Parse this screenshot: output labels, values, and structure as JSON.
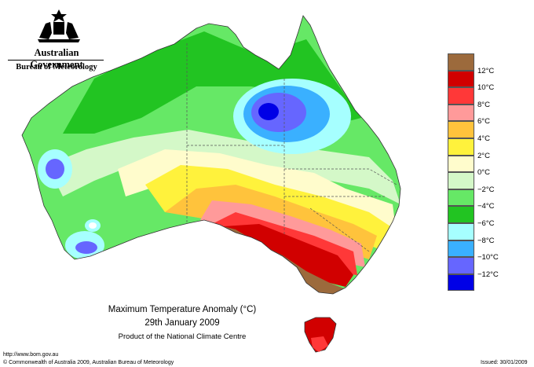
{
  "agency": {
    "government": "Australian Government",
    "bureau": "Bureau of Meteorology"
  },
  "map": {
    "title": "Maximum Temperature Anomaly (°C)",
    "date": "29th January 2009",
    "product": "Product of the National Climate Centre"
  },
  "legend": {
    "items": [
      {
        "label": "",
        "color": "#9c6a3c"
      },
      {
        "label": "12°C",
        "color": "#d10000"
      },
      {
        "label": "10°C",
        "color": "#ff3838"
      },
      {
        "label": "8°C",
        "color": "#ff9a9a"
      },
      {
        "label": "6°C",
        "color": "#ffc33c"
      },
      {
        "label": "4°C",
        "color": "#fff23c"
      },
      {
        "label": "2°C",
        "color": "#fffccc"
      },
      {
        "label": "0°C",
        "color": "#d4f8c8"
      },
      {
        "label": "−2°C",
        "color": "#66e866"
      },
      {
        "label": "−4°C",
        "color": "#22c422"
      },
      {
        "label": "−6°C",
        "color": "#a6ffff"
      },
      {
        "label": "−8°C",
        "color": "#3ab0ff"
      },
      {
        "label": "−10°C",
        "color": "#6666ff"
      },
      {
        "label": "−12°C",
        "color": "#0000e6"
      }
    ]
  },
  "footer": {
    "url": "http://www.bom.gov.au",
    "copyright": "© Commonwealth of Australia 2009, Australian Bureau of Meteorology",
    "issued": "Issued: 30/01/2009"
  }
}
